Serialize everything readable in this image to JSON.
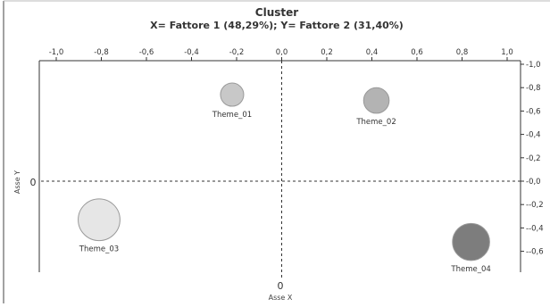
{
  "chart_data": {
    "type": "scatter",
    "title": "Cluster",
    "subtitle": "X= Fattore 1 (48,29%); Y= Fattore 2 (31,40%)",
    "xlabel": "Asse X",
    "ylabel": "Asse Y",
    "x_zero_label": "0",
    "y_zero_label": "0",
    "xlim": [
      -1.0,
      1.0
    ],
    "ylim": [
      -0.6,
      1.0
    ],
    "x_ticks": [
      "-1,0",
      "-0,8",
      "-0,6",
      "-0,4",
      "-0,2",
      "0,0",
      "0,2",
      "0,4",
      "0,6",
      "0,8",
      "1,0"
    ],
    "x_tick_values": [
      -1.0,
      -0.8,
      -0.6,
      -0.4,
      -0.2,
      0.0,
      0.2,
      0.4,
      0.6,
      0.8,
      1.0
    ],
    "y_ticks": [
      "1,0",
      "0,8",
      "0,6",
      "0,4",
      "0,2",
      "0,0",
      "-0,2",
      "-0,4",
      "-0,6"
    ],
    "y_tick_values": [
      1.0,
      0.8,
      0.6,
      0.4,
      0.2,
      0.0,
      -0.2,
      -0.4,
      -0.6
    ],
    "grid": false,
    "points": [
      {
        "label": "Theme_01",
        "x": -0.22,
        "y": 0.74,
        "size": 1.0,
        "color": "#c8c8c8"
      },
      {
        "label": "Theme_02",
        "x": 0.42,
        "y": 0.69,
        "size": 1.1,
        "color": "#b3b3b3"
      },
      {
        "label": "Theme_03",
        "x": -0.81,
        "y": -0.33,
        "size": 1.8,
        "color": "#e6e6e6"
      },
      {
        "label": "Theme_04",
        "x": 0.84,
        "y": -0.52,
        "size": 1.6,
        "color": "#7d7d7d"
      }
    ]
  }
}
